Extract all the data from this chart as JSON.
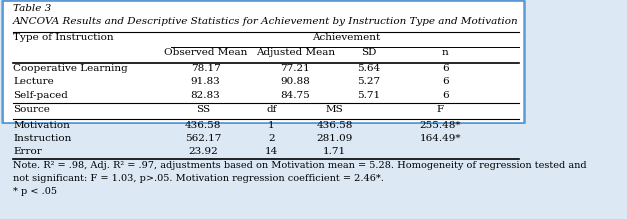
{
  "title_line1": "Table 3",
  "title_line2": "ANCOVA Results and Descriptive Statistics for Achievement by Instruction Type and Motivation",
  "col_header1": "Type of Instruction",
  "col_header2": "Achievement",
  "sub_headers": [
    "Observed Mean",
    "Adjusted Mean",
    "SD",
    "n"
  ],
  "data_rows": [
    [
      "Cooperative Learning",
      "78.17",
      "77.21",
      "5.64",
      "6"
    ],
    [
      "Lecture",
      "91.83",
      "90.88",
      "5.27",
      "6"
    ],
    [
      "Self-paced",
      "82.83",
      "84.75",
      "5.71",
      "6"
    ]
  ],
  "source_header": [
    "Source",
    "SS",
    "df",
    "MS",
    "F"
  ],
  "source_rows": [
    [
      "Motivation",
      "436.58",
      "1",
      "436.58",
      "255.48*"
    ],
    [
      "Instruction",
      "562.17",
      "2",
      "281.09",
      "164.49*"
    ],
    [
      "Error",
      "23.92",
      "14",
      "1.71",
      ""
    ]
  ],
  "note_line1": "Note. R² = .98, Adj. R² = .97, adjustments based on Motivation mean = 5.28. Homogeneity of regression tested and",
  "note_line2": "not significant: F = 1.03, p>.05. Motivation regression coefficient = 2.46*.",
  "note_line3": "* p < .05",
  "bg_color": "#dce9f5",
  "border_color": "#5b9bd5",
  "table_bg": "#ffffff",
  "text_color": "#000000",
  "font_size": 7.5
}
